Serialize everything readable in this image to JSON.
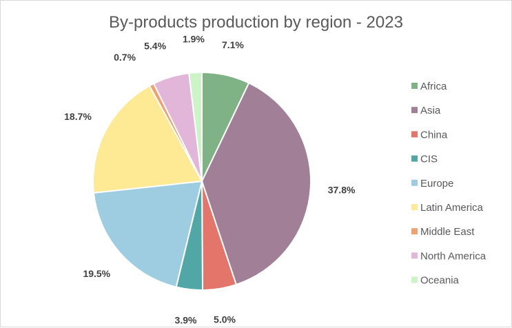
{
  "chart_data": {
    "type": "pie",
    "title": "By-products production by region - 2023",
    "labels": [
      "Africa",
      "Asia",
      "China",
      "CIS",
      "Europe",
      "Latin America",
      "Middle East",
      "North America",
      "Oceania"
    ],
    "values": [
      7.1,
      37.8,
      5.0,
      3.9,
      19.5,
      18.7,
      0.7,
      5.4,
      1.9
    ],
    "value_labels": [
      "7.1%",
      "37.8%",
      "5.0%",
      "3.9%",
      "19.5%",
      "18.7%",
      "0.7%",
      "5.4%",
      "1.9%"
    ],
    "colors": [
      "#7fb386",
      "#a07f97",
      "#e4756b",
      "#50a7a6",
      "#9ecde2",
      "#fee995",
      "#f1a070",
      "#e2b6d9",
      "#cdf4c6"
    ],
    "legend_position": "right",
    "start_angle": "12 o'clock, clockwise"
  }
}
